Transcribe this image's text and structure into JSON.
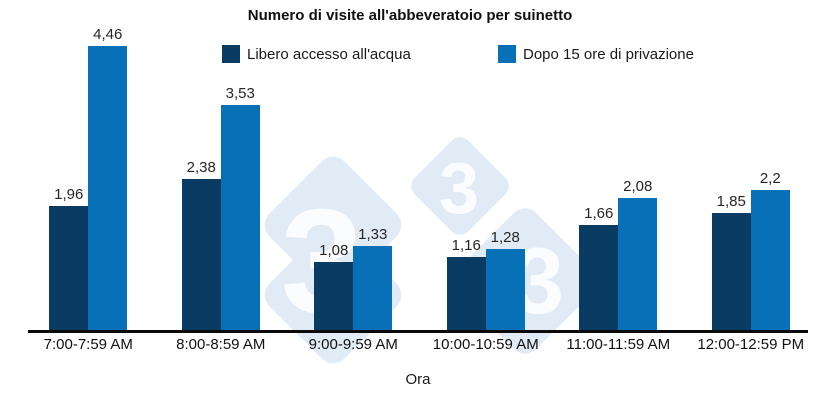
{
  "chart_data": {
    "type": "bar",
    "title": "Numero di visite all'abbeveratoio per suinetto",
    "xlabel": "Ora",
    "categories": [
      "7:00-7:59 AM",
      "8:00-8:59 AM",
      "9:00-9:59 AM",
      "10:00-10:59 AM",
      "11:00-11:59 AM",
      "12:00-12:59 PM"
    ],
    "series": [
      {
        "name": "Libero accesso all'acqua",
        "color": "#0A3B63",
        "values": [
          1.96,
          2.38,
          1.08,
          1.16,
          1.66,
          1.85
        ],
        "labels": [
          "1,96",
          "2,38",
          "1,08",
          "1,16",
          "1,66",
          "1,85"
        ]
      },
      {
        "name": "Dopo 15 ore di privazione",
        "color": "#0770B7",
        "values": [
          4.46,
          3.53,
          1.33,
          1.28,
          2.08,
          2.2
        ],
        "labels": [
          "4,46",
          "3,53",
          "1,33",
          "1,28",
          "2,08",
          "2,2"
        ]
      }
    ],
    "ylim": [
      0,
      4.7
    ],
    "grid": false,
    "legend_position": "top"
  },
  "watermark": {
    "digits": [
      "3",
      "3",
      "3"
    ],
    "diamond_color": "#E1EBF6",
    "digit_color": "#FBFCFE"
  },
  "colors": {
    "background": "#FFFFFF",
    "axis": "#0A0A0A",
    "label_text": "#262626"
  }
}
